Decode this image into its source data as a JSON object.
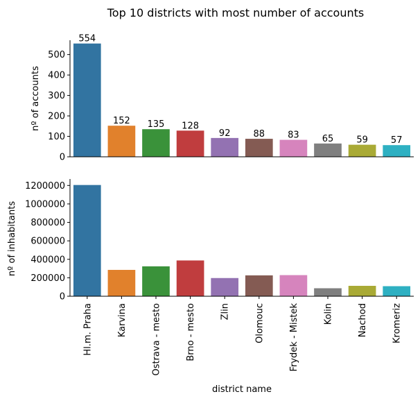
{
  "chart_data": {
    "type": "bar",
    "title": "Top 10 districts with most number of accounts",
    "xlabel": "district name",
    "categories": [
      "Hl.m. Praha",
      "Karvina",
      "Ostrava - mesto",
      "Brno - mesto",
      "Zlin",
      "Olomouc",
      "Frydek - Mistek",
      "Kolin",
      "Nachod",
      "Kromeriz"
    ],
    "colors": [
      "#3274a1",
      "#e1812c",
      "#3a923a",
      "#c03d3e",
      "#9372b2",
      "#845b53",
      "#d684bd",
      "#7f7f7f",
      "#a9aa35",
      "#2eb0c2"
    ],
    "grid": false,
    "legend": "none",
    "panels": [
      {
        "ylabel": "nº of accounts",
        "ylim": [
          0,
          570
        ],
        "yticks": [
          0,
          100,
          200,
          300,
          400,
          500
        ],
        "values": [
          554,
          152,
          135,
          128,
          92,
          88,
          83,
          65,
          59,
          57
        ],
        "data_labels": [
          "554",
          "152",
          "135",
          "128",
          "92",
          "88",
          "83",
          "65",
          "59",
          "57"
        ]
      },
      {
        "ylabel": "nº of inhabitants",
        "ylim": [
          0,
          1270000
        ],
        "yticks": [
          0,
          200000,
          400000,
          600000,
          800000,
          1000000,
          1200000
        ],
        "values": [
          1204953,
          285387,
          323870,
          387570,
          197099,
          226122,
          228848,
          86513,
          112709,
          108871
        ]
      }
    ]
  }
}
